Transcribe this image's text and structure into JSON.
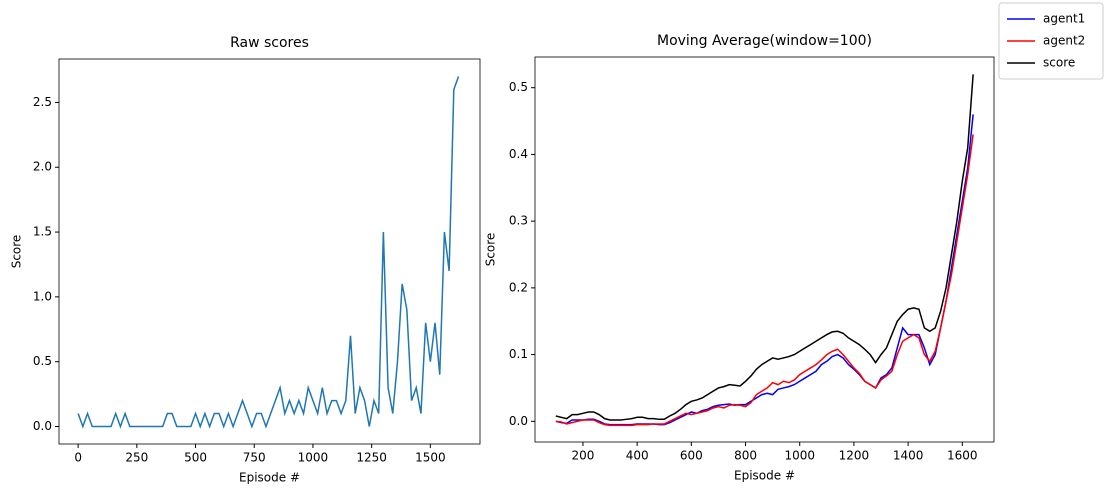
{
  "chart_data": [
    {
      "type": "line",
      "title": "Raw scores",
      "xlabel": "Episode #",
      "ylabel": "Score",
      "xlim": [
        -81.5,
        1711.5
      ],
      "ylim": [
        -0.135,
        2.835
      ],
      "xticks": [
        0,
        250,
        500,
        750,
        1000,
        1250,
        1500
      ],
      "yticks": [
        {
          "value": 0,
          "label": "0.0"
        },
        0.5,
        {
          "value": 1,
          "label": "1.0"
        },
        1.5,
        {
          "value": 2,
          "label": "2.0"
        },
        2.5
      ],
      "x": [
        0,
        20,
        40,
        60,
        80,
        100,
        120,
        140,
        160,
        180,
        200,
        220,
        240,
        260,
        280,
        300,
        320,
        340,
        360,
        380,
        400,
        420,
        440,
        460,
        480,
        500,
        520,
        540,
        560,
        580,
        600,
        620,
        640,
        660,
        680,
        700,
        720,
        740,
        760,
        780,
        800,
        820,
        840,
        860,
        880,
        900,
        920,
        940,
        960,
        980,
        1000,
        1020,
        1040,
        1060,
        1080,
        1100,
        1120,
        1140,
        1160,
        1180,
        1200,
        1220,
        1240,
        1260,
        1280,
        1300,
        1320,
        1340,
        1360,
        1380,
        1400,
        1420,
        1440,
        1460,
        1480,
        1500,
        1520,
        1540,
        1560,
        1580,
        1600,
        1620
      ],
      "series": [
        {
          "color": "#1f77b4",
          "values": [
            0.1,
            0,
            0.1,
            0,
            0,
            0,
            0,
            0,
            0.1,
            0,
            0.1,
            0,
            0,
            0,
            0,
            0,
            0,
            0,
            0,
            0.1,
            0.1,
            0,
            0,
            0,
            0,
            0.1,
            0,
            0.1,
            0,
            0.1,
            0.1,
            0,
            0.1,
            0,
            0.1,
            0.2,
            0.1,
            0,
            0.1,
            0.1,
            0,
            0.1,
            0.2,
            0.3,
            0.1,
            0.2,
            0.1,
            0.2,
            0.1,
            0.3,
            0.2,
            0.1,
            0.3,
            0.1,
            0.2,
            0.2,
            0.1,
            0.2,
            0.7,
            0.1,
            0.3,
            0.2,
            0,
            0.2,
            0.1,
            1.5,
            0.3,
            0.1,
            0.5,
            1.1,
            0.9,
            0.2,
            0.3,
            0.1,
            0.8,
            0.5,
            0.8,
            0.4,
            1.5,
            1.2,
            2.6,
            2.7
          ]
        }
      ]
    },
    {
      "type": "line",
      "title": "Moving Average(window=100)",
      "xlabel": "Episode #",
      "ylabel": "Score",
      "xlim": [
        23,
        1717
      ],
      "ylim": [
        -0.031,
        0.546
      ],
      "xticks": [
        200,
        400,
        600,
        800,
        1000,
        1200,
        1400,
        1600
      ],
      "yticks": [
        {
          "value": 0,
          "label": "0.0"
        },
        0.1,
        0.2,
        0.3,
        0.4,
        0.5
      ],
      "legend": "upper right",
      "x": [
        100,
        120,
        140,
        160,
        180,
        200,
        220,
        240,
        260,
        280,
        300,
        320,
        340,
        360,
        380,
        400,
        420,
        440,
        460,
        480,
        500,
        520,
        540,
        560,
        580,
        600,
        620,
        640,
        660,
        680,
        700,
        720,
        740,
        760,
        780,
        800,
        820,
        840,
        860,
        880,
        900,
        920,
        940,
        960,
        980,
        1000,
        1020,
        1040,
        1060,
        1080,
        1100,
        1120,
        1140,
        1160,
        1180,
        1200,
        1220,
        1240,
        1260,
        1280,
        1300,
        1320,
        1340,
        1360,
        1380,
        1400,
        1420,
        1440,
        1460,
        1480,
        1500,
        1520,
        1540,
        1560,
        1580,
        1600,
        1620,
        1640
      ],
      "series": [
        {
          "name": "agent1",
          "color": "#0000ff",
          "values": [
            0,
            -0.002,
            -0.003,
            0.002,
            0.002,
            0.002,
            0.003,
            0.003,
            0,
            -0.004,
            -0.005,
            -0.005,
            -0.005,
            -0.005,
            -0.005,
            -0.004,
            -0.004,
            -0.004,
            -0.004,
            -0.005,
            -0.005,
            -0.002,
            0.002,
            0.006,
            0.01,
            0.014,
            0.012,
            0.016,
            0.018,
            0.022,
            0.024,
            0.025,
            0.026,
            0.024,
            0.025,
            0.025,
            0.03,
            0.035,
            0.04,
            0.042,
            0.04,
            0.048,
            0.05,
            0.052,
            0.055,
            0.06,
            0.065,
            0.07,
            0.075,
            0.085,
            0.09,
            0.097,
            0.1,
            0.095,
            0.085,
            0.078,
            0.07,
            0.06,
            0.055,
            0.05,
            0.065,
            0.07,
            0.08,
            0.11,
            0.14,
            0.13,
            0.13,
            0.13,
            0.11,
            0.085,
            0.1,
            0.14,
            0.18,
            0.23,
            0.28,
            0.33,
            0.38,
            0.46
          ]
        },
        {
          "name": "agent2",
          "color": "#ff0000",
          "values": [
            0,
            -0.001,
            -0.004,
            -0.002,
            0,
            0.002,
            0.002,
            0.002,
            -0.002,
            -0.005,
            -0.006,
            -0.006,
            -0.006,
            -0.006,
            -0.006,
            -0.005,
            -0.005,
            -0.005,
            -0.004,
            -0.004,
            -0.004,
            0,
            0.004,
            0.008,
            0.012,
            0.01,
            0.012,
            0.014,
            0.016,
            0.02,
            0.022,
            0.02,
            0.024,
            0.025,
            0.024,
            0.022,
            0.028,
            0.04,
            0.045,
            0.05,
            0.058,
            0.055,
            0.06,
            0.058,
            0.062,
            0.07,
            0.075,
            0.08,
            0.085,
            0.092,
            0.1,
            0.105,
            0.108,
            0.1,
            0.09,
            0.08,
            0.072,
            0.06,
            0.055,
            0.05,
            0.062,
            0.068,
            0.075,
            0.1,
            0.12,
            0.125,
            0.13,
            0.125,
            0.1,
            0.09,
            0.105,
            0.14,
            0.18,
            0.22,
            0.27,
            0.32,
            0.37,
            0.43
          ]
        },
        {
          "name": "score",
          "color": "#000000",
          "values": [
            0.008,
            0.006,
            0.004,
            0.01,
            0.01,
            0.012,
            0.014,
            0.014,
            0.01,
            0.004,
            0.002,
            0.002,
            0.002,
            0.003,
            0.004,
            0.006,
            0.006,
            0.004,
            0.004,
            0.003,
            0.003,
            0.008,
            0.012,
            0.018,
            0.025,
            0.03,
            0.032,
            0.035,
            0.04,
            0.045,
            0.05,
            0.052,
            0.055,
            0.054,
            0.053,
            0.06,
            0.068,
            0.078,
            0.085,
            0.09,
            0.095,
            0.093,
            0.095,
            0.097,
            0.1,
            0.105,
            0.11,
            0.115,
            0.12,
            0.125,
            0.13,
            0.134,
            0.135,
            0.132,
            0.125,
            0.12,
            0.115,
            0.108,
            0.1,
            0.088,
            0.1,
            0.11,
            0.13,
            0.15,
            0.16,
            0.168,
            0.17,
            0.168,
            0.14,
            0.135,
            0.14,
            0.165,
            0.2,
            0.25,
            0.3,
            0.36,
            0.41,
            0.52
          ]
        }
      ]
    }
  ]
}
